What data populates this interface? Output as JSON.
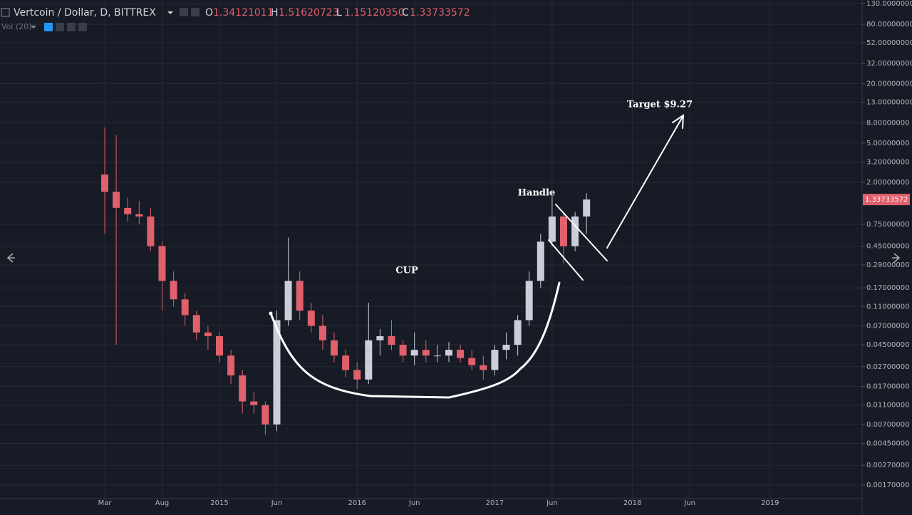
{
  "header": {
    "symbol": "Vertcoin / Dollar, D, BITTREX",
    "ohlc": [
      {
        "label": "O",
        "value": "1.34121011"
      },
      {
        "label": "H",
        "value": "1.51620723"
      },
      {
        "label": "L",
        "value": "1.15120350"
      },
      {
        "label": "C",
        "value": "1.33733572"
      }
    ],
    "volume": "Vol (20)"
  },
  "chart_data": {
    "type": "candlestick",
    "annotations": {
      "cup": "CUP",
      "handle": "Handle",
      "target": "Target $9.27"
    },
    "categories": [
      "Mar",
      null,
      null,
      null,
      null,
      "Aug",
      null,
      null,
      null,
      null,
      "2015",
      null,
      null,
      null,
      null,
      "Jun",
      null,
      null,
      null,
      null,
      null,
      null,
      "2016",
      null,
      null,
      null,
      null,
      "Jun",
      null,
      null,
      null,
      null,
      null,
      null,
      "2017",
      null,
      null,
      null,
      null,
      "Jun",
      null,
      null,
      null,
      null,
      null,
      null,
      "2018",
      null,
      null,
      null,
      null,
      "Jun",
      null,
      null,
      null,
      null,
      null,
      null,
      "2019",
      null,
      null,
      null,
      null,
      null,
      null,
      null
    ],
    "open": [
      2.4,
      1.6,
      1.1,
      0.95,
      0.9,
      0.45,
      0.2,
      0.13,
      0.09,
      0.06,
      0.055,
      0.035,
      0.022,
      0.012,
      0.011,
      0.007,
      0.08,
      0.2,
      0.1,
      0.07,
      0.05,
      0.035,
      0.025,
      0.02,
      0.05,
      0.055,
      0.045,
      0.035,
      0.04,
      0.035,
      0.035,
      0.04,
      0.033,
      0.028,
      0.025,
      0.04,
      0.045,
      0.08,
      0.2,
      0.5,
      0.9,
      0.45,
      0.9,
      null,
      null,
      null,
      null,
      null,
      null,
      null,
      null,
      null,
      null,
      null,
      null,
      null,
      null,
      null,
      null,
      null,
      null,
      null,
      null,
      null,
      null,
      null
    ],
    "high": [
      7.2,
      6,
      1.4,
      1.3,
      1.1,
      0.5,
      0.25,
      0.15,
      0.1,
      0.07,
      0.06,
      0.04,
      0.025,
      0.015,
      0.012,
      0.1,
      0.55,
      0.25,
      0.12,
      0.09,
      0.06,
      0.04,
      0.03,
      0.12,
      0.065,
      0.08,
      0.05,
      0.06,
      0.05,
      0.045,
      0.048,
      0.045,
      0.04,
      0.035,
      0.045,
      0.06,
      0.09,
      0.25,
      0.6,
      1.45,
      1.0,
      1.0,
      1.55,
      null,
      null,
      null,
      null,
      null,
      null,
      null,
      null,
      null,
      null,
      null,
      null,
      null,
      null,
      null,
      null,
      null,
      null,
      null,
      null,
      null,
      null,
      null
    ],
    "low": [
      0.6,
      0.045,
      0.8,
      0.75,
      0.4,
      0.1,
      0.11,
      0.07,
      0.05,
      0.04,
      0.03,
      0.018,
      0.009,
      0.009,
      0.0055,
      0.006,
      0.07,
      0.08,
      0.06,
      0.04,
      0.03,
      0.021,
      0.016,
      0.018,
      0.035,
      0.04,
      0.03,
      0.028,
      0.03,
      0.03,
      0.03,
      0.03,
      0.025,
      0.02,
      0.022,
      0.032,
      0.035,
      0.07,
      0.17,
      0.45,
      0.3,
      0.4,
      0.6,
      null,
      null,
      null,
      null,
      null,
      null,
      null,
      null,
      null,
      null,
      null,
      null,
      null,
      null,
      null,
      null,
      null,
      null,
      null,
      null,
      null,
      null,
      null
    ],
    "close": [
      1.6,
      1.1,
      0.95,
      0.9,
      0.45,
      0.2,
      0.13,
      0.09,
      0.06,
      0.055,
      0.035,
      0.022,
      0.012,
      0.011,
      0.007,
      0.08,
      0.2,
      0.1,
      0.07,
      0.05,
      0.035,
      0.025,
      0.02,
      0.05,
      0.055,
      0.045,
      0.035,
      0.04,
      0.035,
      0.035,
      0.04,
      0.033,
      0.028,
      0.025,
      0.04,
      0.045,
      0.08,
      0.2,
      0.5,
      0.9,
      0.45,
      0.9,
      1.33733572,
      null,
      null,
      null,
      null,
      null,
      null,
      null,
      null,
      null,
      null,
      null,
      null,
      null,
      null,
      null,
      null,
      null,
      null,
      null,
      null,
      null,
      null,
      null
    ],
    "up_color": "#c9ced8",
    "down_color": "#e0606c",
    "log_scale": true,
    "grid": true,
    "ylim": [
      0.00124,
      141
    ],
    "yticks": [
      {
        "value": 130,
        "label": "130.00000000"
      },
      {
        "value": 80,
        "label": "80.00000000"
      },
      {
        "value": 52,
        "label": "52.00000000"
      },
      {
        "value": 32,
        "label": "32.00000000"
      },
      {
        "value": 20,
        "label": "20.00000000"
      },
      {
        "value": 13,
        "label": "13.00000000"
      },
      {
        "value": 8,
        "label": "8.00000000"
      },
      {
        "value": 5,
        "label": "5.00000000"
      },
      {
        "value": 3.2,
        "label": "3.20000000"
      },
      {
        "value": 2,
        "label": "2.00000000"
      },
      {
        "value": 0.75,
        "label": "0.75000000"
      },
      {
        "value": 0.45,
        "label": "0.45000000"
      },
      {
        "value": 0.29,
        "label": "0.29000000"
      },
      {
        "value": 0.17,
        "label": "0.17000000"
      },
      {
        "value": 0.11,
        "label": "0.11000000"
      },
      {
        "value": 0.07,
        "label": "0.07000000"
      },
      {
        "value": 0.045,
        "label": "0.04500000"
      },
      {
        "value": 0.027,
        "label": "0.02700000"
      },
      {
        "value": 0.017,
        "label": "0.01700000"
      },
      {
        "value": 0.011,
        "label": "0.01100000"
      },
      {
        "value": 0.007,
        "label": "0.00700000"
      },
      {
        "value": 0.0045,
        "label": "0.00450000"
      },
      {
        "value": 0.0027,
        "label": "0.00270000"
      },
      {
        "value": 0.0017,
        "label": "0.00170000"
      }
    ],
    "last_price": {
      "value": 1.33733572,
      "label": "1.33733572"
    }
  }
}
